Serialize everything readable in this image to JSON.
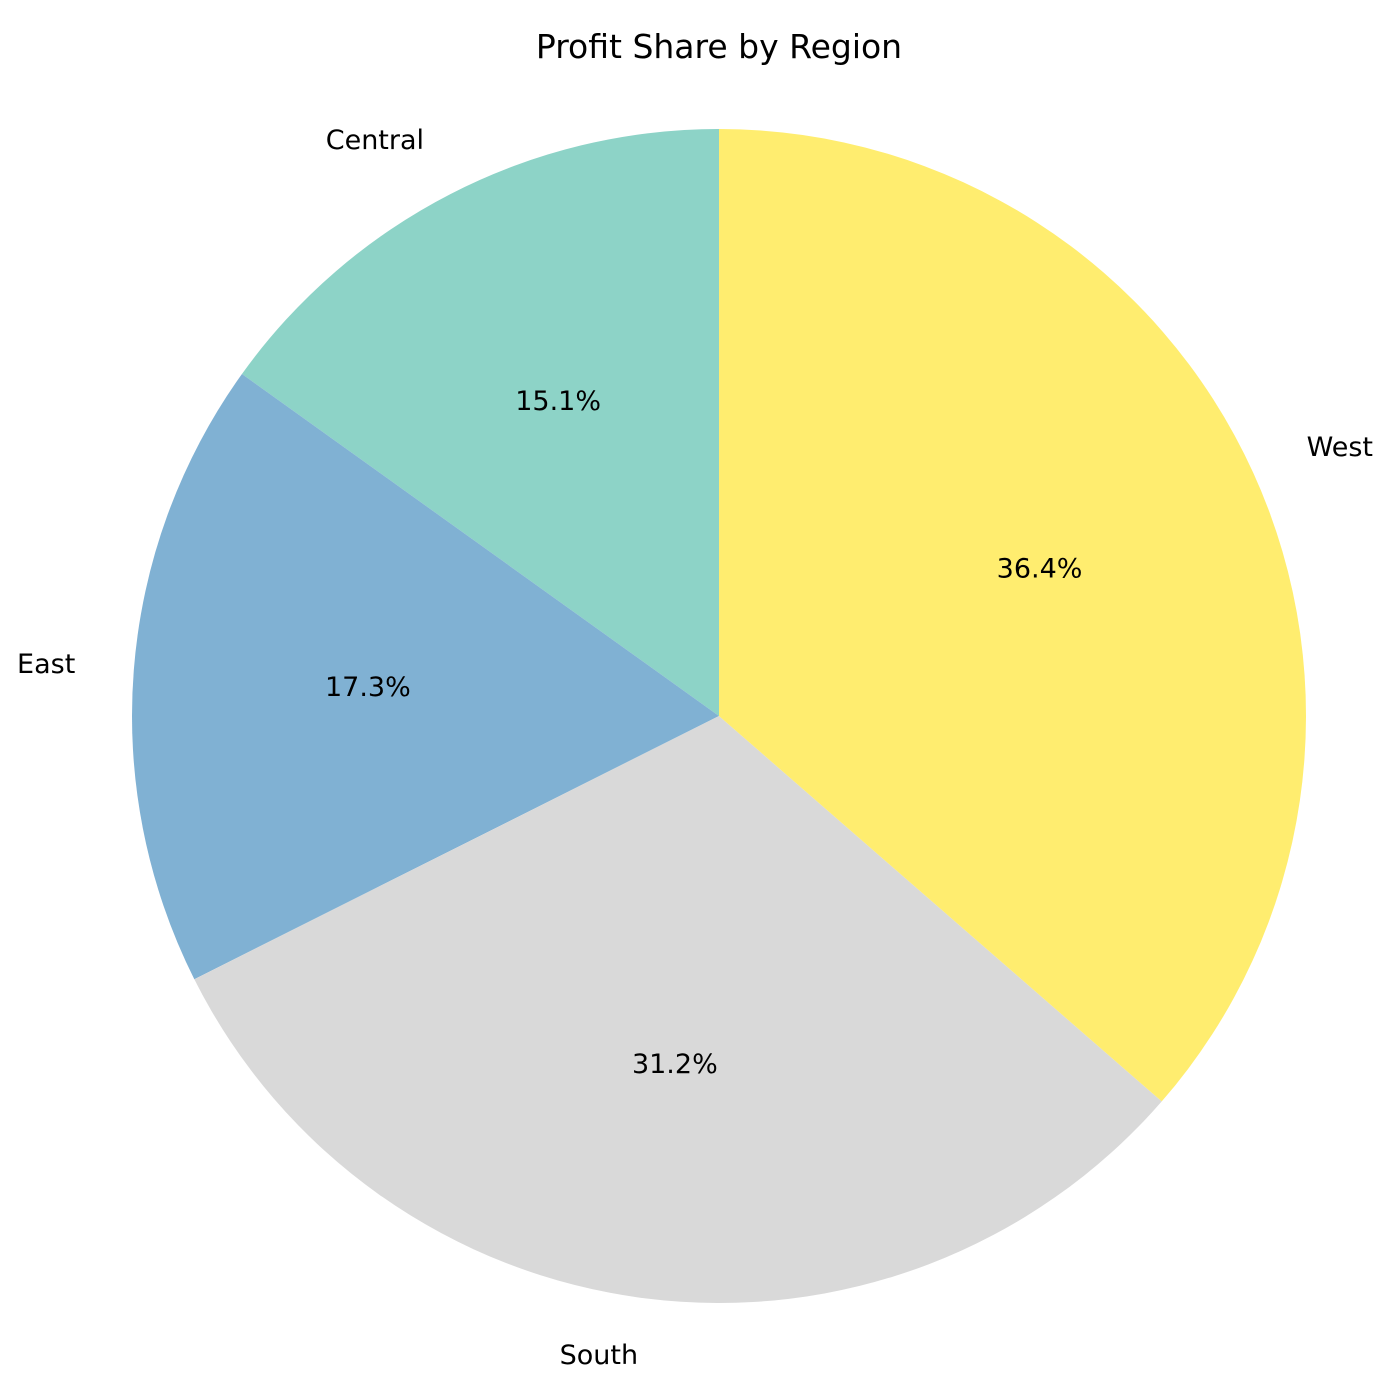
{
  "chart_data": {
    "type": "pie",
    "title": "Profit Share by Region",
    "start_angle_deg": 90,
    "direction": "counterclockwise",
    "slices": [
      {
        "label": "Central",
        "value": 15.1,
        "pct_label": "15.1%",
        "color": "#8dd3c7"
      },
      {
        "label": "East",
        "value": 17.3,
        "pct_label": "17.3%",
        "color": "#80b1d3"
      },
      {
        "label": "South",
        "value": 31.2,
        "pct_label": "31.2%",
        "color": "#d9d9d9"
      },
      {
        "label": "West",
        "value": 36.4,
        "pct_label": "36.4%",
        "color": "#ffed6f"
      }
    ]
  }
}
